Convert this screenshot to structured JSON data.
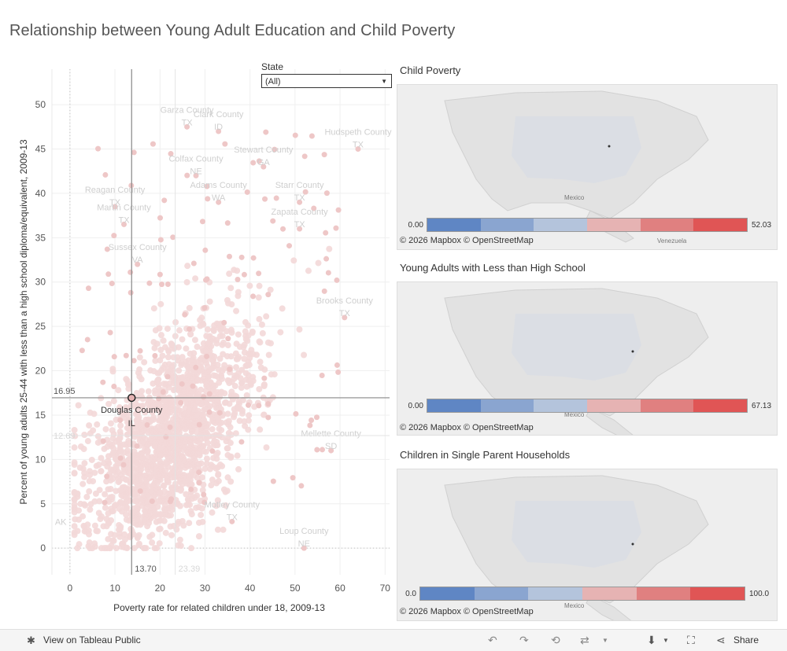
{
  "title": "Relationship between Young Adult Education and Child Poverty",
  "filter": {
    "label": "State",
    "value": "(All)"
  },
  "chart_data": {
    "type": "scatter",
    "xlabel": "Poverty rate for related children under 18, 2009-13",
    "ylabel": "Percent of young adults 25-44 with less than a high school diploma/equivalent, 2009-13",
    "xlim": [
      -4,
      71
    ],
    "ylim": [
      -3,
      54
    ],
    "x_ticks": [
      0,
      10,
      20,
      30,
      40,
      50,
      60,
      70
    ],
    "y_ticks": [
      0,
      5,
      10,
      15,
      20,
      25,
      30,
      35,
      40,
      45,
      50
    ],
    "selected": {
      "name": "Douglas County",
      "state": "IL",
      "x": 13.7,
      "y": 16.95,
      "x_label": "13.70",
      "y_label": "16.95"
    },
    "averages": {
      "x": 23.39,
      "y": 12.69,
      "x_label": "23.39",
      "y_label": "12.69"
    },
    "labeled_counties": [
      {
        "name": "Garza County",
        "state": "TX",
        "x": 26,
        "y": 47.5
      },
      {
        "name": "Clark County",
        "state": "ID",
        "x": 33,
        "y": 47
      },
      {
        "name": "Hudspeth County",
        "state": "TX",
        "x": 64,
        "y": 45
      },
      {
        "name": "Colfax County",
        "state": "NE",
        "x": 28,
        "y": 42
      },
      {
        "name": "Stewart County",
        "state": "GA",
        "x": 43,
        "y": 43
      },
      {
        "name": "Adams County",
        "state": "WA",
        "x": 33,
        "y": 39
      },
      {
        "name": "Starr County",
        "state": "TX",
        "x": 51,
        "y": 39
      },
      {
        "name": "Reagan County",
        "state": "TX",
        "x": 10,
        "y": 38.5
      },
      {
        "name": "Zapata County",
        "state": "TX",
        "x": 51,
        "y": 36
      },
      {
        "name": "Martin County",
        "state": "TX",
        "x": 12,
        "y": 36.5
      },
      {
        "name": "Sussex County",
        "state": "VA",
        "x": 15,
        "y": 32
      },
      {
        "name": "Brooks County",
        "state": "TX",
        "x": 61,
        "y": 26
      },
      {
        "name": "Mellette County",
        "state": "SD",
        "x": 58,
        "y": 11
      },
      {
        "name": "Motley County",
        "state": "TX",
        "x": 36,
        "y": 3
      },
      {
        "name": "Loup County",
        "state": "NE",
        "x": 52,
        "y": 0
      },
      {
        "name": "AK",
        "state": "",
        "x": -1,
        "y": 3
      }
    ],
    "random_seed": 42
  },
  "maps": [
    {
      "title": "Child Poverty",
      "legend_min": "0.00",
      "legend_max": "52.03",
      "attribution": "© 2026 Mapbox  © OpenStreetMap"
    },
    {
      "title": "Young Adults with Less than High School",
      "legend_min": "0.00",
      "legend_max": "67.13",
      "attribution": "© 2026 Mapbox  © OpenStreetMap"
    },
    {
      "title": "Children in Single Parent Households",
      "legend_min": "0.0",
      "legend_max": "100.0",
      "attribution": "© 2026 Mapbox  © OpenStreetMap"
    }
  ],
  "map_place_labels": {
    "mexico": "Mexico",
    "venezuela": "Venezuela"
  },
  "legend_colors": [
    "#5f86c4",
    "#8aa5d0",
    "#b4c4dc",
    "#e6b3b3",
    "#e08080",
    "#e05555"
  ],
  "footer": {
    "view_label": "View on Tableau Public",
    "share_label": "Share"
  }
}
